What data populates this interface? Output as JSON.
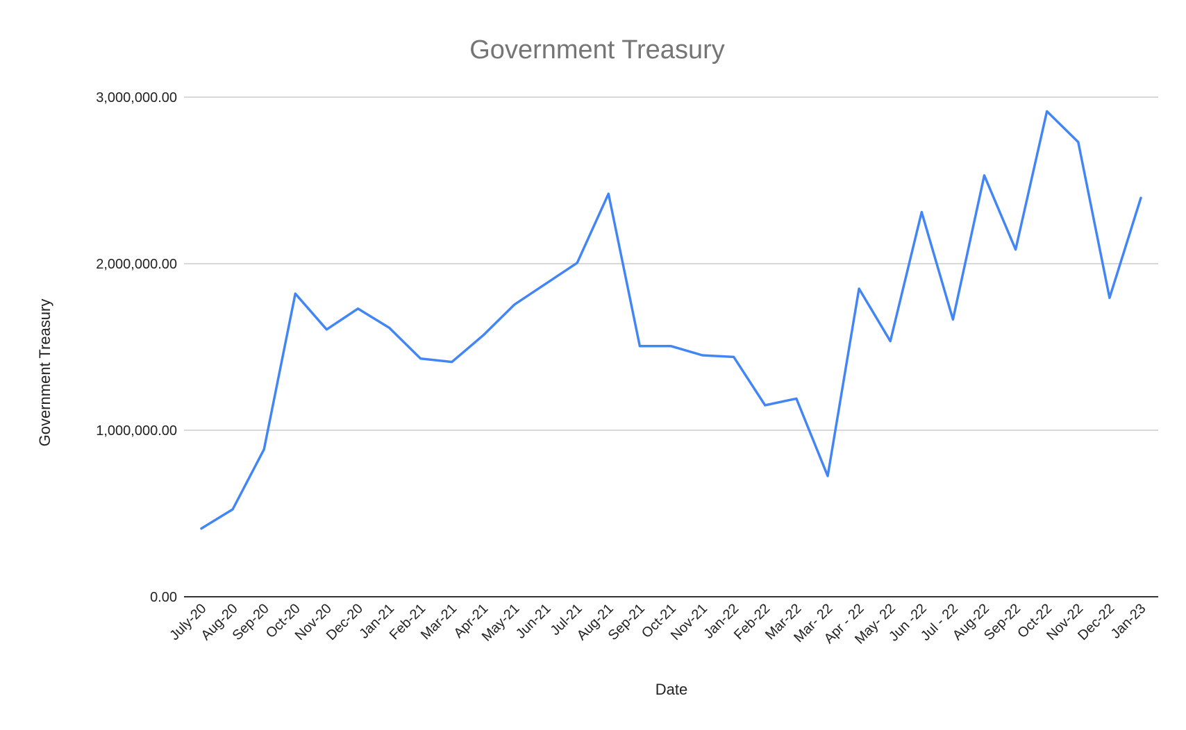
{
  "chart_data": {
    "type": "line",
    "title": "Government Treasury",
    "xlabel": "Date",
    "ylabel": "Government Treasury",
    "ylim": [
      0,
      3000000
    ],
    "yticks": [
      0,
      1000000,
      2000000,
      3000000
    ],
    "ytick_labels": [
      "0.00",
      "1,000,000.00",
      "2,000,000.00",
      "3,000,000.00"
    ],
    "grid": true,
    "legend": "none",
    "line_color": "#4285f4",
    "categories": [
      "July-20",
      "Aug-20",
      "Sep-20",
      "Oct-20",
      "Nov-20",
      "Dec-20",
      "Jan-21",
      "Feb-21",
      "Mar-21",
      "Apr-21",
      "May-21",
      "Jun-21",
      "Jul-21",
      "Aug-21",
      "Sep-21",
      "Oct-21",
      "Nov-21",
      "Jan-22",
      "Feb-22",
      "Mar-22",
      "Mar- 22",
      "Apr - 22",
      "May- 22",
      "Jun -22",
      "Jul - 22",
      "Aug-22",
      "Sep-22",
      "Oct-22",
      "Nov-22",
      "Dec-22",
      "Jan-23"
    ],
    "values": [
      410000,
      525000,
      885000,
      1820000,
      1605000,
      1730000,
      1615000,
      1430000,
      1410000,
      1570000,
      1755000,
      1880000,
      2005000,
      2420000,
      1505000,
      1505000,
      1450000,
      1440000,
      1150000,
      1190000,
      725000,
      1850000,
      1535000,
      2310000,
      1665000,
      2530000,
      2085000,
      2915000,
      2730000,
      1795000,
      2395000
    ]
  }
}
